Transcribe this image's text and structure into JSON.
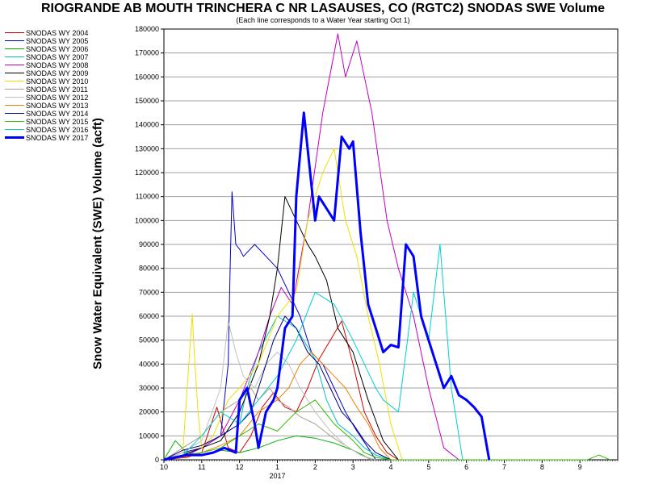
{
  "title": "RIOGRANDE AB MOUTH TRINCHERA C NR LASAUSES, CO (RGTC2) SNODAS SWE Volume",
  "subtitle": "(Each line corresponds to a Water Year starting Oct 1)",
  "chart_data": {
    "type": "line",
    "title": "RIOGRANDE AB MOUTH TRINCHERA C NR LASAUSES, CO (RGTC2) SNODAS SWE Volume",
    "subtitle": "(Each line corresponds to a Water Year starting Oct 1)",
    "xlabel": "",
    "ylabel": "Snow Water Equivalent (SWE) Volume (acft)",
    "x_ticks": [
      "10",
      "11",
      "12",
      "1",
      "2",
      "3",
      "4",
      "5",
      "6",
      "7",
      "8",
      "9"
    ],
    "x_tick_months": [
      0,
      1,
      2,
      3,
      4,
      5,
      6,
      7,
      8,
      9,
      10,
      11
    ],
    "year_label": "2017",
    "xlim": [
      0,
      12
    ],
    "ylim": [
      0,
      180000
    ],
    "y_ticks": [
      0,
      10000,
      20000,
      30000,
      40000,
      50000,
      60000,
      70000,
      80000,
      90000,
      100000,
      110000,
      120000,
      130000,
      140000,
      150000,
      160000,
      170000,
      180000
    ],
    "grid": true,
    "legend_position": "left",
    "series": [
      {
        "name": "SNODAS WY 2004",
        "color": "#d40000",
        "width": 1,
        "x": [
          0,
          0.6,
          1.0,
          1.4,
          1.7,
          2.0,
          2.3,
          2.6,
          2.9,
          3.2,
          3.5,
          3.8,
          4.1,
          4.4,
          4.7,
          5.0,
          5.3,
          5.6,
          5.9,
          6.2
        ],
        "y": [
          0,
          1000,
          3000,
          22000,
          5000,
          3000,
          10000,
          22000,
          28000,
          22000,
          20000,
          30000,
          42000,
          50000,
          58000,
          40000,
          20000,
          10000,
          3000,
          0
        ]
      },
      {
        "name": "SNODAS WY 2005",
        "color": "#0000c8",
        "width": 1,
        "x": [
          0,
          0.5,
          1.0,
          1.5,
          1.7,
          1.75,
          1.8,
          1.9,
          2.0,
          2.1,
          2.4,
          2.7,
          3.0,
          3.3,
          3.6,
          3.9,
          4.2,
          4.5,
          4.8,
          5.1,
          5.4,
          5.6
        ],
        "y": [
          0,
          3000,
          5000,
          10000,
          40000,
          80000,
          112000,
          90000,
          88000,
          85000,
          90000,
          85000,
          80000,
          70000,
          60000,
          45000,
          40000,
          30000,
          20000,
          12000,
          5000,
          0
        ]
      },
      {
        "name": "SNODAS WY 2006",
        "color": "#00b000",
        "width": 1,
        "x": [
          0,
          0.3,
          0.6,
          1.0,
          1.5,
          2.0,
          2.5,
          3.0,
          3.5,
          4.0,
          4.5,
          5.0,
          5.5
        ],
        "y": [
          0,
          8000,
          3000,
          2000,
          4000,
          3000,
          5000,
          8000,
          10000,
          9000,
          7000,
          4000,
          0
        ]
      },
      {
        "name": "SNODAS WY 2007",
        "color": "#00c0c0",
        "width": 1,
        "x": [
          0,
          0.5,
          1.0,
          1.5,
          2.0,
          2.2,
          2.5,
          3.0,
          3.5,
          4.0,
          4.3,
          4.6,
          5.0,
          5.3,
          5.6,
          6.0
        ],
        "y": [
          0,
          2000,
          5000,
          10000,
          15000,
          30000,
          45000,
          60000,
          55000,
          42000,
          25000,
          15000,
          10000,
          5000,
          2000,
          0
        ]
      },
      {
        "name": "SNODAS WY 2008",
        "color": "#c000c0",
        "width": 1,
        "x": [
          0,
          0.5,
          1.0,
          1.5,
          2.0,
          2.5,
          2.8,
          3.1,
          3.4,
          3.8,
          4.2,
          4.6,
          4.8,
          5.1,
          5.5,
          5.9,
          6.2,
          6.6,
          7.0,
          7.4,
          7.8
        ],
        "y": [
          0,
          1000,
          5000,
          10000,
          25000,
          45000,
          60000,
          72000,
          65000,
          100000,
          145000,
          178000,
          160000,
          175000,
          145000,
          100000,
          80000,
          60000,
          30000,
          5000,
          0
        ]
      },
      {
        "name": "SNODAS WY 2009",
        "color": "#000000",
        "width": 1,
        "x": [
          0,
          0.5,
          1.0,
          1.5,
          2.0,
          2.5,
          2.8,
          3.0,
          3.2,
          3.5,
          3.8,
          4.0,
          4.3,
          4.6,
          5.0,
          5.4,
          5.8,
          6.2
        ],
        "y": [
          0,
          2000,
          5000,
          8000,
          20000,
          40000,
          60000,
          80000,
          110000,
          100000,
          90000,
          85000,
          75000,
          55000,
          45000,
          25000,
          8000,
          0
        ]
      },
      {
        "name": "SNODAS WY 2010",
        "color": "#f0e000",
        "width": 1,
        "x": [
          0,
          0.5,
          0.7,
          0.75,
          0.8,
          0.9,
          1.0,
          1.3,
          1.7,
          2.0,
          2.5,
          3.0,
          3.5,
          3.8,
          4.0,
          4.2,
          4.5,
          4.8,
          5.1,
          5.4,
          5.7,
          6.0,
          6.3
        ],
        "y": [
          0,
          3000,
          50000,
          61000,
          45000,
          20000,
          5000,
          10000,
          25000,
          30000,
          40000,
          60000,
          70000,
          100000,
          110000,
          120000,
          130000,
          100000,
          85000,
          60000,
          40000,
          15000,
          0
        ]
      },
      {
        "name": "SNODAS WY 2011",
        "color": "#b0a090",
        "width": 1,
        "x": [
          0,
          0.5,
          1.0,
          1.5,
          2.0,
          2.3,
          2.5,
          2.8,
          3.0,
          3.3,
          3.6,
          4.0,
          4.4,
          4.8,
          5.2,
          5.5
        ],
        "y": [
          0,
          5000,
          10000,
          20000,
          25000,
          30000,
          25000,
          30000,
          25000,
          22000,
          18000,
          15000,
          10000,
          6000,
          2000,
          0
        ]
      },
      {
        "name": "SNODAS WY 2012",
        "color": "#c0c0c0",
        "width": 1,
        "x": [
          0,
          0.5,
          1.0,
          1.5,
          1.7,
          1.9,
          2.1,
          2.4,
          2.7,
          3.0,
          3.3,
          3.6,
          4.0,
          4.4,
          4.8,
          5.2,
          5.6
        ],
        "y": [
          0,
          3000,
          8000,
          30000,
          58000,
          45000,
          35000,
          30000,
          40000,
          45000,
          40000,
          30000,
          20000,
          12000,
          6000,
          2000,
          0
        ]
      },
      {
        "name": "SNODAS WY 2013",
        "color": "#f08000",
        "width": 1,
        "x": [
          0,
          0.5,
          1.0,
          1.5,
          2.0,
          2.5,
          3.0,
          3.3,
          3.6,
          3.9,
          4.2,
          4.5,
          4.8,
          5.1,
          5.4,
          5.7,
          6.0
        ],
        "y": [
          0,
          1000,
          3000,
          6000,
          10000,
          20000,
          25000,
          30000,
          40000,
          45000,
          40000,
          35000,
          30000,
          22000,
          15000,
          5000,
          0
        ]
      },
      {
        "name": "SNODAS WY 2014",
        "color": "#000080",
        "width": 1,
        "x": [
          0,
          0.5,
          1.0,
          1.5,
          2.0,
          2.3,
          2.6,
          2.9,
          3.2,
          3.5,
          3.8,
          4.1,
          4.4,
          4.7,
          5.0,
          5.3,
          5.6,
          6.0
        ],
        "y": [
          0,
          4000,
          6000,
          10000,
          15000,
          20000,
          35000,
          50000,
          60000,
          55000,
          45000,
          40000,
          30000,
          20000,
          15000,
          8000,
          3000,
          0
        ]
      },
      {
        "name": "SNODAS WY 2015",
        "color": "#33bb00",
        "width": 1,
        "x": [
          0,
          0.5,
          1.0,
          1.5,
          2.0,
          2.5,
          3.0,
          3.5,
          4.0,
          4.5,
          5.0,
          5.3,
          5.6,
          6.0,
          10.0,
          11.2,
          11.5,
          11.8
        ],
        "y": [
          0,
          2000,
          3000,
          5000,
          10000,
          15000,
          12000,
          20000,
          25000,
          15000,
          8000,
          3000,
          1000,
          0,
          0,
          0,
          2000,
          0
        ]
      },
      {
        "name": "SNODAS WY 2016",
        "color": "#00d0d0",
        "width": 1,
        "x": [
          0,
          0.5,
          1.0,
          1.5,
          2.0,
          2.5,
          3.0,
          3.5,
          4.0,
          4.5,
          5.0,
          5.3,
          5.6,
          5.8,
          6.2,
          6.6,
          7.0,
          7.3,
          7.6,
          7.9
        ],
        "y": [
          0,
          2000,
          10000,
          20000,
          15000,
          25000,
          35000,
          50000,
          70000,
          65000,
          50000,
          40000,
          30000,
          25000,
          20000,
          70000,
          50000,
          90000,
          30000,
          0
        ]
      },
      {
        "name": "SNODAS WY 2017",
        "color": "#0000ff",
        "width": 3,
        "x": [
          0,
          0.3,
          0.6,
          1.0,
          1.3,
          1.6,
          1.9,
          2.0,
          2.2,
          2.4,
          2.5,
          2.7,
          2.9,
          3.0,
          3.2,
          3.4,
          3.5,
          3.7,
          4.0,
          4.1,
          4.3,
          4.5,
          4.7,
          4.9,
          5.0,
          5.2,
          5.4,
          5.6,
          5.8,
          6.0,
          6.2,
          6.4,
          6.6,
          6.8,
          7.0,
          7.2,
          7.4,
          7.6,
          7.8,
          8.0,
          8.2,
          8.4,
          8.6
        ],
        "y": [
          0,
          1000,
          2000,
          2000,
          3000,
          5000,
          3000,
          25000,
          30000,
          15000,
          5000,
          20000,
          25000,
          30000,
          55000,
          60000,
          110000,
          145000,
          100000,
          110000,
          105000,
          100000,
          135000,
          130000,
          133000,
          95000,
          65000,
          55000,
          45000,
          48000,
          47000,
          90000,
          85000,
          60000,
          50000,
          40000,
          30000,
          35000,
          27000,
          25000,
          22000,
          18000,
          0
        ]
      }
    ]
  }
}
